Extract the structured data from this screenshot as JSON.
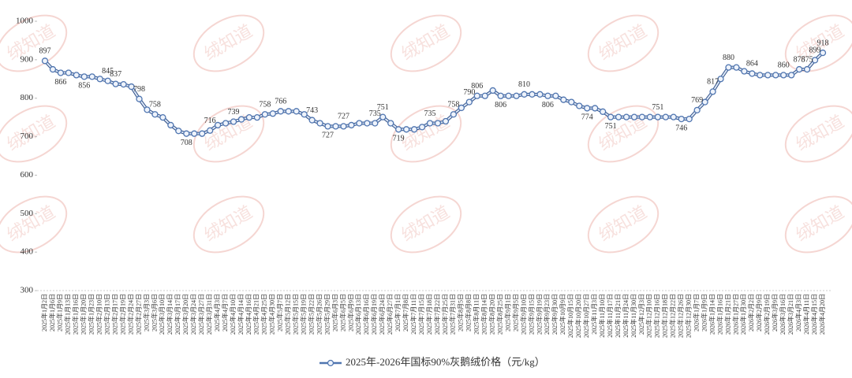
{
  "chart_data": {
    "type": "line",
    "watermark": "绒知道",
    "categories": [
      "2025年1月2日",
      "2025年1月6日",
      "2025年1月9日",
      "2025年1月13日",
      "2025年1月16日",
      "2025年1月20日",
      "2025年1月23日",
      "2025年2月10日",
      "2025年2月13日",
      "2025年2月17日",
      "2025年2月19日",
      "2025年2月24日",
      "2025年2月27日",
      "2025年3月3日",
      "2025年3月6日",
      "2025年3月10日",
      "2025年3月14日",
      "2025年3月17日",
      "2025年3月20日",
      "2025年3月24日",
      "2025年3月27日",
      "2025年3月31日",
      "2025年4月3日",
      "2025年4月7日",
      "2025年4月10日",
      "2025年4月14日",
      "2025年4月16日",
      "2025年4月21日",
      "2025年4月25日",
      "2025年4月30日",
      "2025年5月7日",
      "2025年5月12日",
      "2025年5月15日",
      "2025年5月19日",
      "2025年5月22日",
      "2025年5月26日",
      "2025年5月29日",
      "2025年6月3日",
      "2025年6月5日",
      "2025年6月9日",
      "2025年6月13日",
      "2025年6月16日",
      "2025年6月19日",
      "2025年6月24日",
      "2025年6月27日",
      "2025年7月1日",
      "2025年7月8日",
      "2025年7月11日",
      "2025年7月15日",
      "2025年7月18日",
      "2025年7月22日",
      "2025年7月25日",
      "2025年7月31日",
      "2025年8月5日",
      "2025年8月8日",
      "2025年8月11日",
      "2025年8月14日",
      "2025年8月20日",
      "2025年8月25日",
      "2025年9月1日",
      "2025年9月5日",
      "2025年9月10日",
      "2025年9月15日",
      "2025年9月19日",
      "2025年9月23日",
      "2025年9月30日",
      "2025年10月9日",
      "2025年10月15日",
      "2025年10月20日",
      "2025年10月27日",
      "2025年11月3日",
      "2025年11月10日",
      "2025年11月17日",
      "2025年11月21日",
      "2025年11月24日",
      "2025年11月30日",
      "2025年12月3日",
      "2025年12月10日",
      "2025年12月16日",
      "2025年12月18日",
      "2025年12月22日",
      "2025年12月26日",
      "2025年12月30日",
      "2026年1月7日",
      "2026年1月9日",
      "2026年1月14日",
      "2026年1月16日",
      "2026年1月21日",
      "2026年1月27日",
      "2026年1月30日",
      "2026年2月2日",
      "2026年2月9日",
      "2026年2月19日",
      "2026年3月9日",
      "2026年3月16日",
      "2026年3月21日",
      "2026年4月3日",
      "2026年4月11日",
      "2026年4月15日",
      "2026年4月20日"
    ],
    "series": [
      {
        "name": "2025年-2026年国标90%灰鹅绒价格（元/kg）",
        "color": "#4f75b0",
        "values": [
          897,
          875,
          866,
          866,
          860,
          856,
          856,
          850,
          845,
          837,
          836,
          830,
          798,
          770,
          758,
          750,
          730,
          715,
          708,
          708,
          708,
          716,
          730,
          735,
          739,
          745,
          750,
          750,
          758,
          760,
          766,
          766,
          766,
          758,
          743,
          735,
          727,
          727,
          727,
          730,
          735,
          735,
          735,
          751,
          735,
          719,
          719,
          719,
          725,
          735,
          735,
          740,
          758,
          775,
          790,
          806,
          806,
          820,
          806,
          806,
          806,
          810,
          810,
          810,
          806,
          806,
          796,
          790,
          780,
          774,
          774,
          765,
          751,
          751,
          751,
          751,
          751,
          751,
          751,
          751,
          751,
          746,
          746,
          769,
          790,
          817,
          850,
          880,
          880,
          870,
          864,
          860,
          860,
          860,
          860,
          860,
          875,
          875,
          899,
          918
        ],
        "value_labels": [
          "897",
          null,
          "866",
          null,
          null,
          "856",
          null,
          null,
          "845",
          "837",
          null,
          null,
          "798",
          null,
          "758",
          null,
          null,
          null,
          "708",
          null,
          null,
          "716",
          null,
          null,
          "739",
          null,
          null,
          null,
          "758",
          null,
          "766",
          null,
          null,
          null,
          "743",
          null,
          "727",
          null,
          "727",
          null,
          null,
          null,
          "735",
          "751",
          null,
          "719",
          null,
          null,
          null,
          "735",
          null,
          null,
          "758",
          null,
          "790",
          "806",
          null,
          null,
          "806",
          null,
          null,
          "810",
          null,
          null,
          "806",
          null,
          null,
          null,
          null,
          "774",
          null,
          null,
          "751",
          null,
          null,
          null,
          null,
          null,
          "751",
          null,
          null,
          "746",
          null,
          "769",
          null,
          "817",
          null,
          "880",
          null,
          null,
          "864",
          null,
          null,
          null,
          "860",
          null,
          "875",
          "875",
          "899",
          "918"
        ]
      }
    ],
    "ylim": [
      300,
      1000
    ],
    "yticks": [
      300,
      400,
      500,
      600,
      700,
      800,
      900,
      1000
    ],
    "grid": false
  }
}
